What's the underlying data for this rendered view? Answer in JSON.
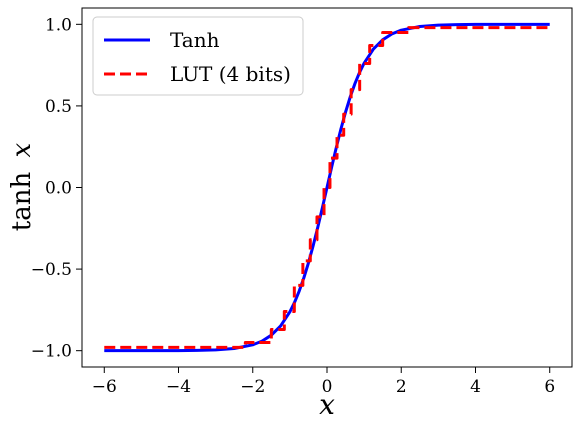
{
  "chart_data": {
    "type": "line",
    "xlabel": "x",
    "ylabel_main": "tanh",
    "ylabel_var": "x",
    "xlim": [
      -6.6,
      6.6
    ],
    "ylim": [
      -1.1,
      1.1
    ],
    "xticks": [
      -6,
      -4,
      -2,
      0,
      2,
      4,
      6
    ],
    "xtick_labels": [
      "−6",
      "−4",
      "−2",
      "0",
      "2",
      "4",
      "6"
    ],
    "yticks": [
      -1.0,
      -0.5,
      0.0,
      0.5,
      1.0
    ],
    "ytick_labels": [
      "−1.0",
      "−0.5",
      "0.0",
      "0.5",
      "1.0"
    ],
    "grid": false,
    "legend": "top-left",
    "series": [
      {
        "name": "Tanh",
        "style": "solid",
        "color": "#0000ff",
        "x": [
          -6,
          -5.5,
          -5,
          -4.5,
          -4,
          -3.5,
          -3,
          -2.5,
          -2,
          -1.75,
          -1.5,
          -1.25,
          -1,
          -0.875,
          -0.75,
          -0.625,
          -0.5,
          -0.375,
          -0.25,
          -0.125,
          0,
          0.125,
          0.25,
          0.375,
          0.5,
          0.625,
          0.75,
          0.875,
          1,
          1.25,
          1.5,
          1.75,
          2,
          2.5,
          3,
          3.5,
          4,
          4.5,
          5,
          5.5,
          6
        ],
        "y": [
          -1.0,
          -1.0,
          -0.9999,
          -0.9998,
          -0.9993,
          -0.9982,
          -0.9951,
          -0.9866,
          -0.964,
          -0.9414,
          -0.9051,
          -0.8483,
          -0.7616,
          -0.7042,
          -0.6351,
          -0.5546,
          -0.4621,
          -0.3584,
          -0.2449,
          -0.1244,
          0.0,
          0.1244,
          0.2449,
          0.3584,
          0.4621,
          0.5546,
          0.6351,
          0.7042,
          0.7616,
          0.8483,
          0.9051,
          0.9414,
          0.964,
          0.9866,
          0.9951,
          0.9982,
          0.9993,
          0.9998,
          0.9999,
          1.0,
          1.0
        ]
      },
      {
        "name": "LUT (4 bits)",
        "style": "dashed",
        "color": "#ff0000",
        "x": [
          -6,
          -2.2,
          -2.2,
          -1.5,
          -1.5,
          -1.15,
          -1.15,
          -0.88,
          -0.88,
          -0.65,
          -0.65,
          -0.45,
          -0.45,
          -0.27,
          -0.27,
          -0.08,
          -0.08,
          0.08,
          0.08,
          0.27,
          0.27,
          0.45,
          0.45,
          0.65,
          0.65,
          0.88,
          0.88,
          1.15,
          1.15,
          1.5,
          1.5,
          2.2,
          2.2,
          6
        ],
        "y": [
          -0.98,
          -0.98,
          -0.95,
          -0.95,
          -0.87,
          -0.87,
          -0.76,
          -0.76,
          -0.6,
          -0.6,
          -0.45,
          -0.45,
          -0.32,
          -0.32,
          -0.18,
          -0.18,
          0.0,
          0.0,
          0.18,
          0.18,
          0.32,
          0.32,
          0.45,
          0.45,
          0.6,
          0.6,
          0.76,
          0.76,
          0.87,
          0.87,
          0.95,
          0.95,
          0.98,
          0.98
        ]
      }
    ]
  }
}
